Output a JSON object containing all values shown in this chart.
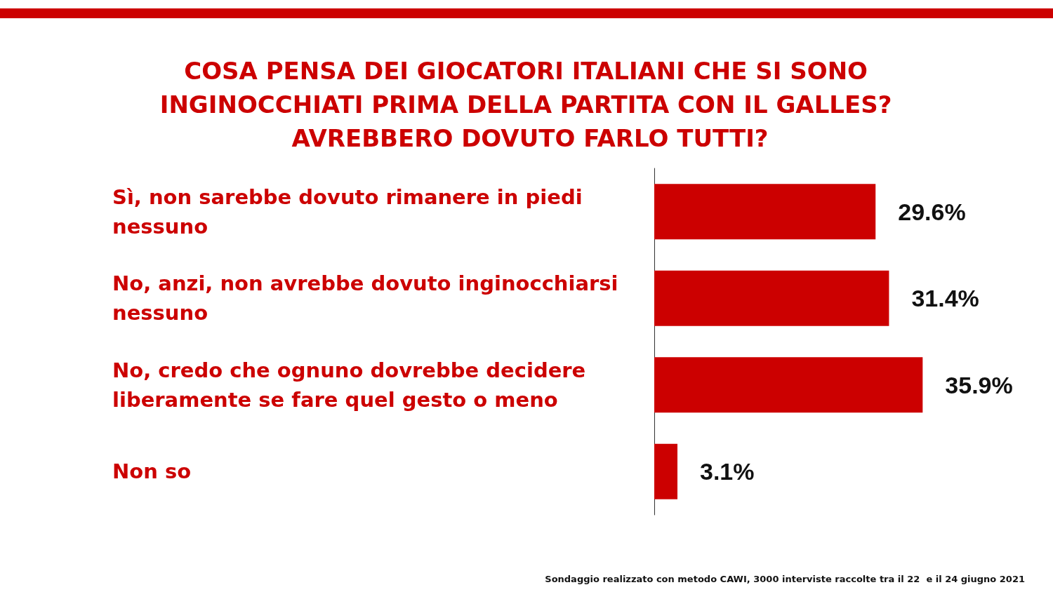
{
  "chart_data": {
    "type": "bar",
    "orientation": "horizontal",
    "title": "COSA PENSA DEI GIOCATORI ITALIANI CHE SI SONO INGINOCCHIATI PRIMA DELLA PARTITA CON IL GALLES? AVREBBERO DOVUTO FARLO TUTTI?",
    "categories": [
      "Sì, non sarebbe dovuto rimanere in piedi nessuno",
      "No, anzi, non avrebbe dovuto inginocchiarsi nessuno",
      "No, credo che ognuno dovrebbe decidere liberamente se fare quel gesto o meno",
      "Non so"
    ],
    "values": [
      29.6,
      31.4,
      35.9,
      3.1
    ],
    "color": "#cc0000",
    "value_labels": [
      "29.6%",
      "31.4%",
      "35.9%",
      "3.1%"
    ],
    "tick_labels": "y",
    "annotations": [
      "Sondaggio realizzato con metodo CAWI, 3000 interviste raccolte tra il 22  e il 24 giugno 2021"
    ]
  }
}
